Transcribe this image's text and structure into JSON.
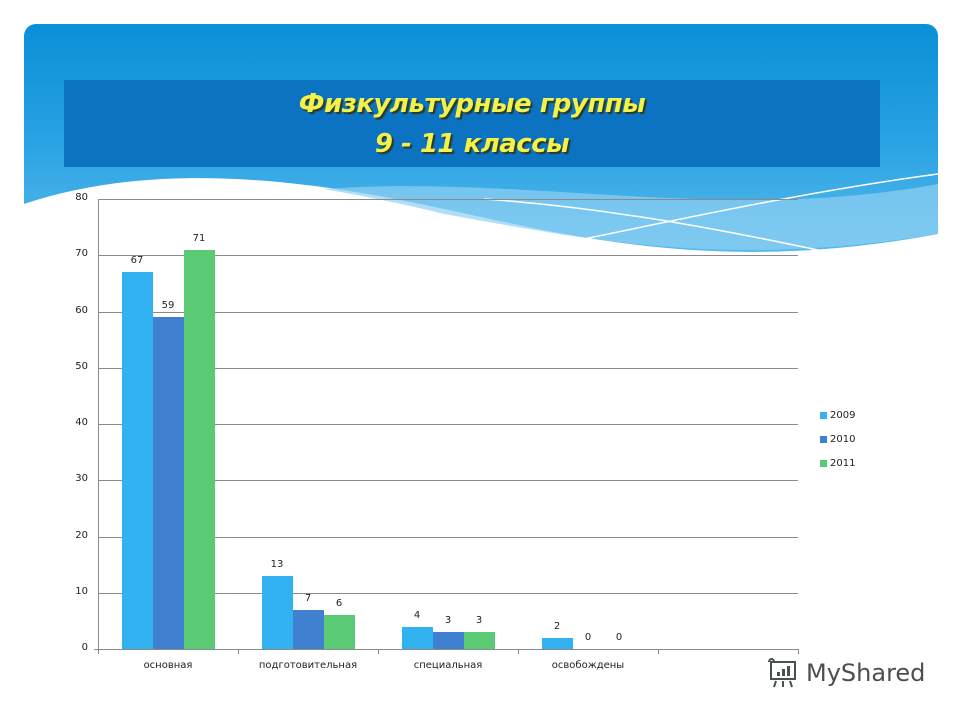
{
  "slide": {
    "title_line1": "Физкультурные группы",
    "title_line2": "9 - 11 классы",
    "watermark": "MyShared"
  },
  "colors": {
    "series_2009": "#33b2f2",
    "series_2010": "#3f81d0",
    "series_2011": "#5acb74",
    "title_text": "#f2f24a",
    "title_band": "#0b73c2"
  },
  "chart_data": {
    "type": "bar",
    "title": "Физкультурные группы 9 - 11 классы",
    "xlabel": "",
    "ylabel": "",
    "categories": [
      "основная",
      "подготовительная",
      "специальная",
      "освобождены",
      ""
    ],
    "series": [
      {
        "name": "2009",
        "values": [
          67,
          13,
          4,
          2,
          null
        ]
      },
      {
        "name": "2010",
        "values": [
          59,
          7,
          3,
          0,
          null
        ]
      },
      {
        "name": "2011",
        "values": [
          71,
          6,
          3,
          0,
          null
        ]
      }
    ],
    "ylim": [
      0,
      80
    ],
    "yticks": [
      "0",
      "10",
      "20",
      "30",
      "40",
      "50",
      "60",
      "70",
      "80"
    ],
    "grid": true,
    "legend_position": "right",
    "data_labels": true
  }
}
